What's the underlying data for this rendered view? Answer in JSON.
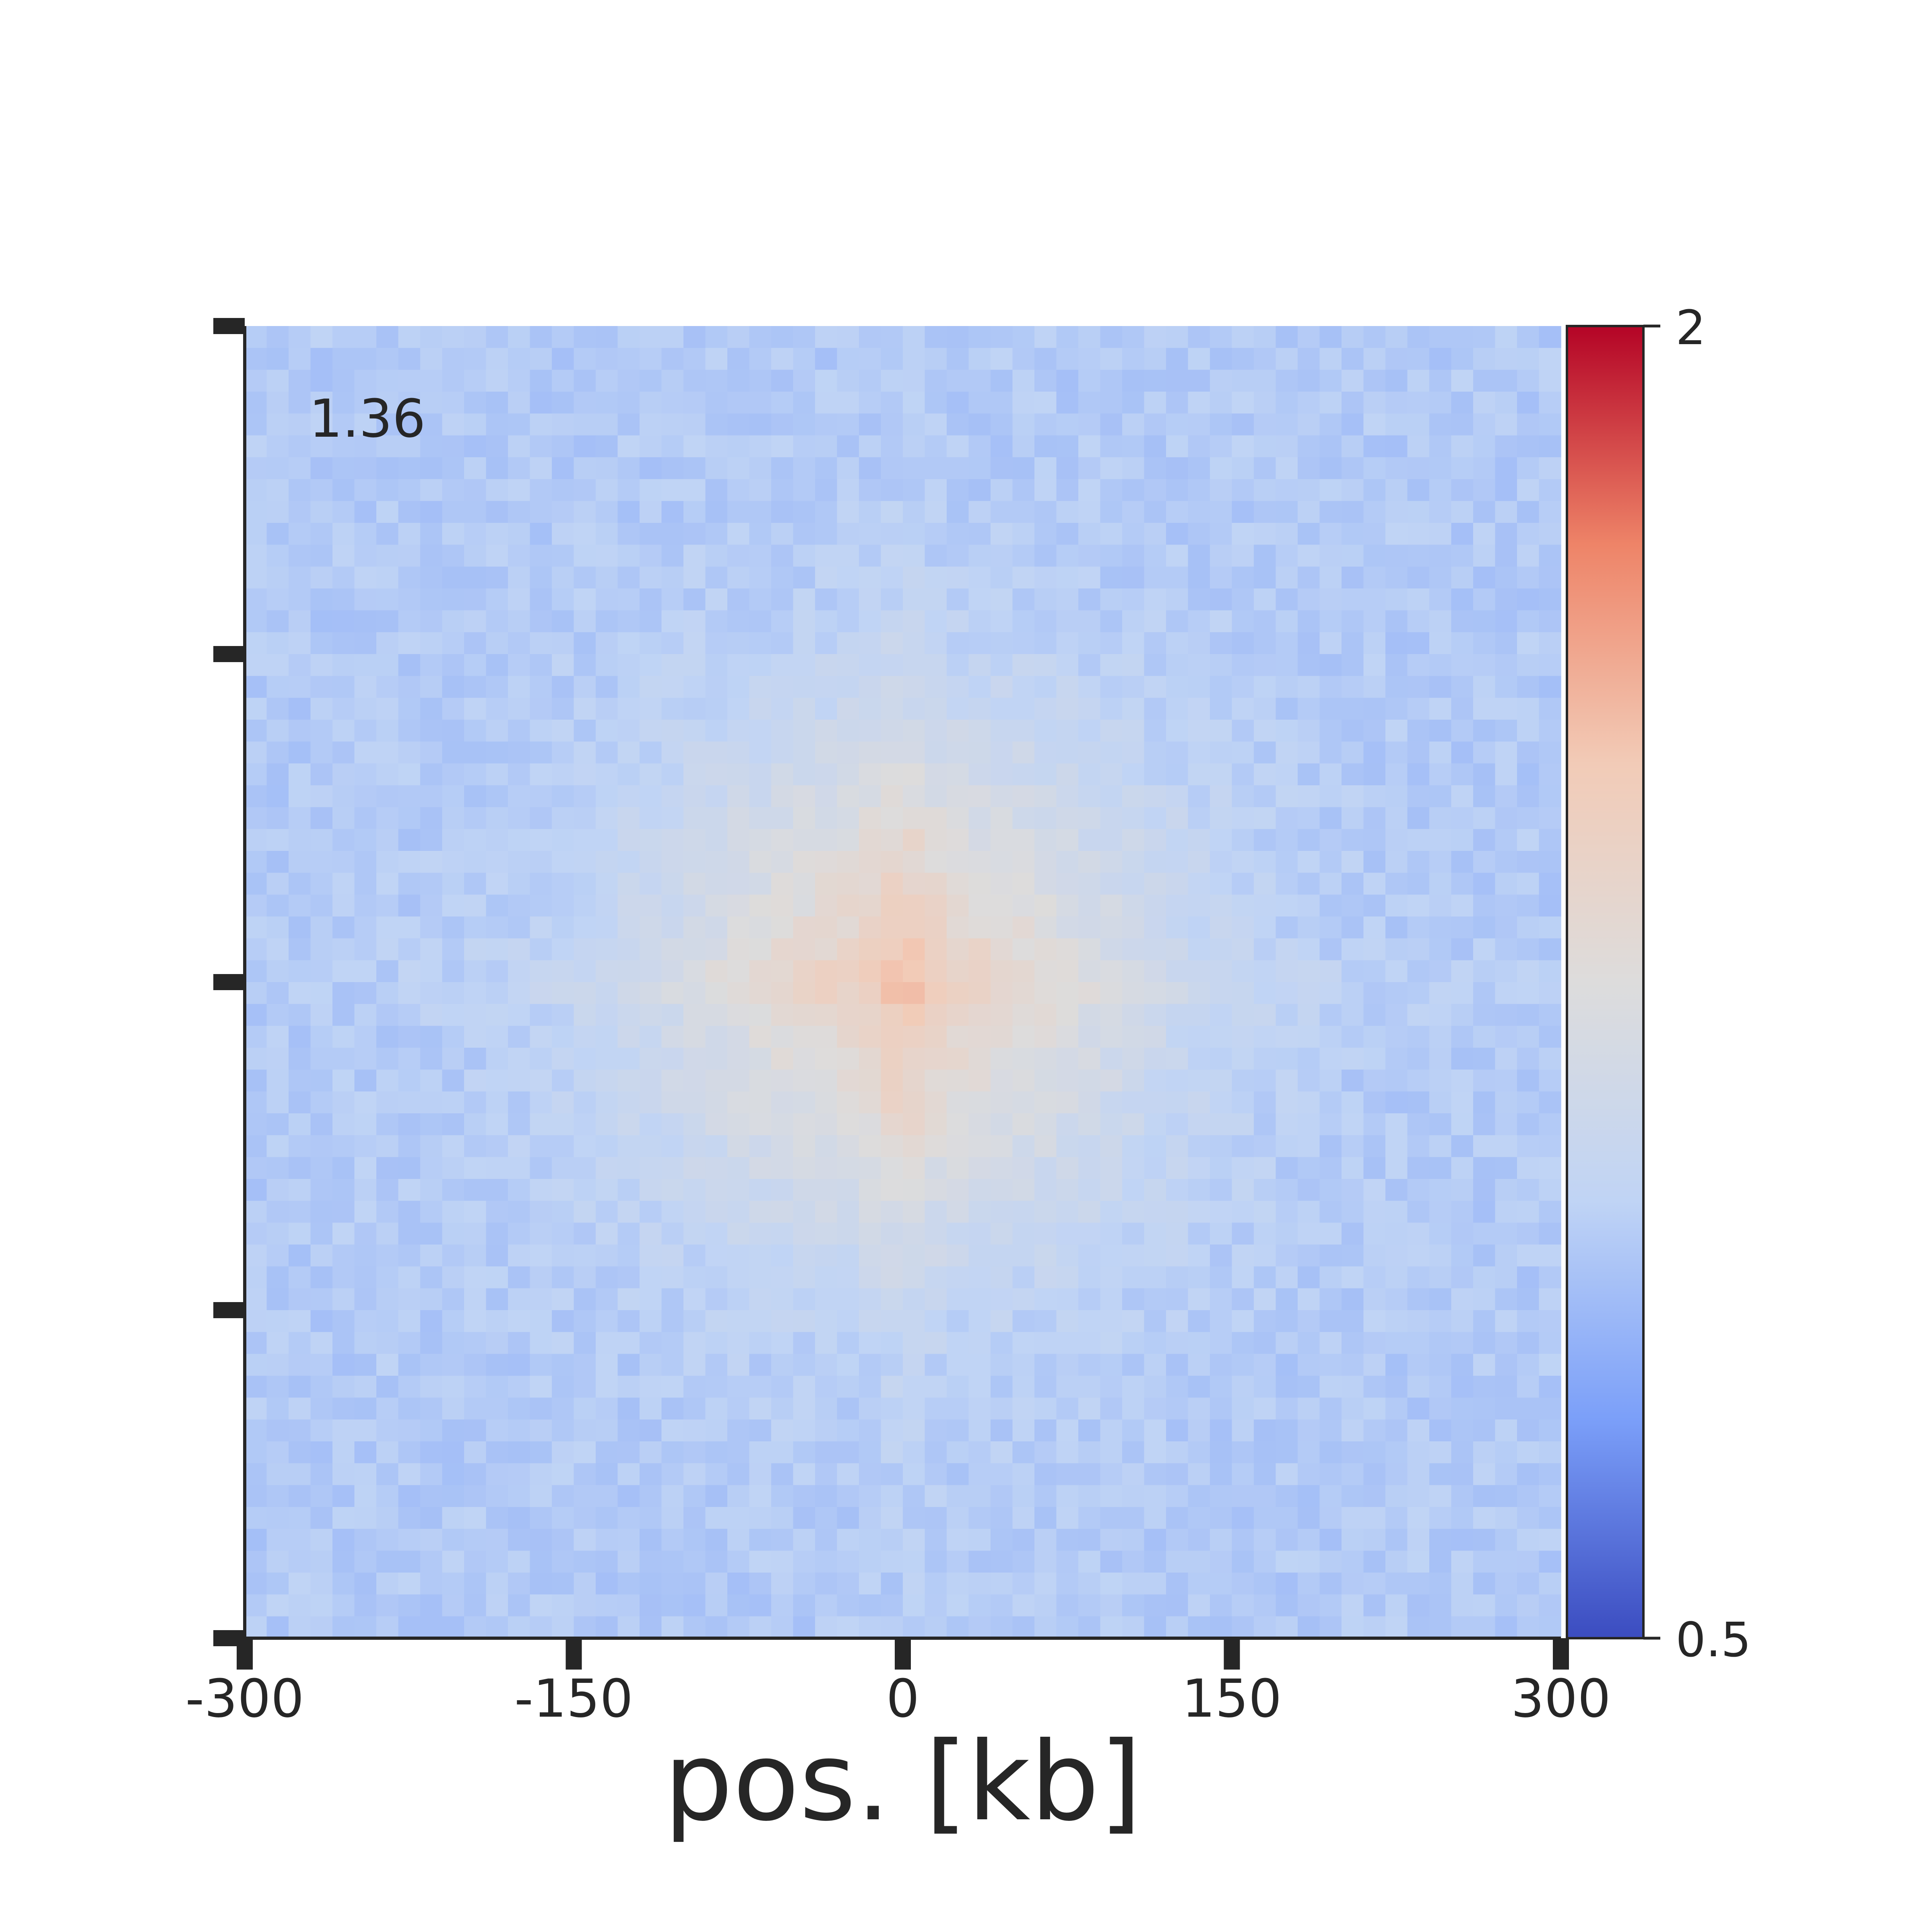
{
  "chart_data": {
    "type": "heatmap",
    "title": "",
    "annotation": "1.36",
    "xlabel": "pos. [kb]",
    "ylabel": "",
    "x_ticks": [
      "-300",
      "-150",
      "0",
      "150",
      "300"
    ],
    "x_tick_values": [
      -300,
      -150,
      0,
      150,
      300
    ],
    "xlim": [
      -300,
      300
    ],
    "ylim": [
      -300,
      300
    ],
    "grid_size": 60,
    "colormap": "coolwarm",
    "colorbar": {
      "ticks": [
        "2",
        "0.5"
      ],
      "tick_values": [
        2,
        0.5
      ],
      "range": [
        0.5,
        2
      ],
      "colors": [
        "#3b4cc0",
        "#7b9ff9",
        "#c0d4f5",
        "#dddcdc",
        "#f2cbb7",
        "#ee8468",
        "#b40426"
      ]
    },
    "center_value": 1.36,
    "background_value": 0.95,
    "grid": false
  }
}
